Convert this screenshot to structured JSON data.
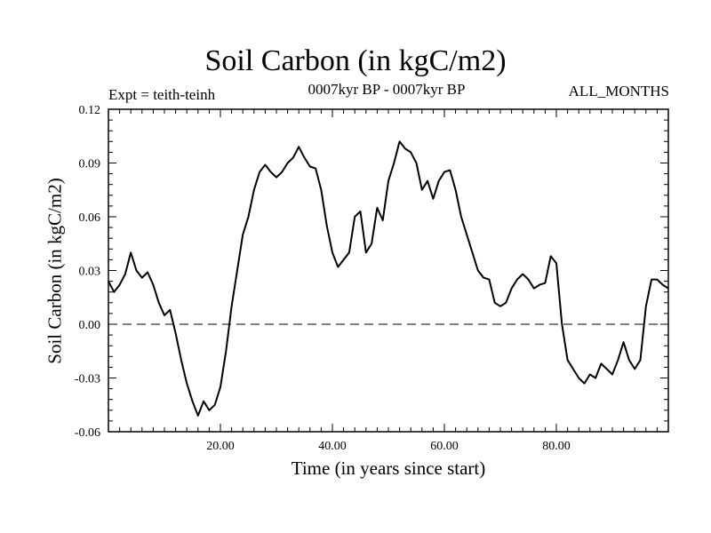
{
  "chart_data": {
    "type": "line",
    "title": "Soil Carbon (in kgC/m2)",
    "subtitle": "0007kyr BP - 0007kyr BP",
    "experiment": "Expt = teith-teinh",
    "period": "ALL_MONTHS",
    "xlabel": "Time (in years since start)",
    "ylabel": "Soil Carbon (in kgC/m2)",
    "xlim": [
      0,
      100
    ],
    "ylim": [
      -0.06,
      0.12
    ],
    "xticks": [
      20,
      40,
      60,
      80
    ],
    "xtick_labels": [
      "20.00",
      "40.00",
      "60.00",
      "80.00"
    ],
    "yticks": [
      -0.06,
      -0.03,
      0.0,
      0.03,
      0.06,
      0.09,
      0.12
    ],
    "ytick_labels": [
      "-0.06",
      "-0.03",
      "0.00",
      "0.03",
      "0.06",
      "0.09",
      "0.12"
    ],
    "zero_line": true,
    "series": [
      {
        "name": "Soil Carbon",
        "x": [
          0,
          1,
          2,
          3,
          4,
          5,
          6,
          7,
          8,
          9,
          10,
          11,
          12,
          13,
          14,
          15,
          16,
          17,
          18,
          19,
          20,
          21,
          22,
          23,
          24,
          25,
          26,
          27,
          28,
          29,
          30,
          31,
          32,
          33,
          34,
          35,
          36,
          37,
          38,
          39,
          40,
          41,
          42,
          43,
          44,
          45,
          46,
          47,
          48,
          49,
          50,
          51,
          52,
          53,
          54,
          55,
          56,
          57,
          58,
          59,
          60,
          61,
          62,
          63,
          64,
          65,
          66,
          67,
          68,
          69,
          70,
          71,
          72,
          73,
          74,
          75,
          76,
          77,
          78,
          79,
          80,
          81,
          82,
          83,
          84,
          85,
          86,
          87,
          88,
          89,
          90,
          91,
          92,
          93,
          94,
          95,
          96,
          97,
          98,
          99,
          100
        ],
        "y": [
          0.024,
          0.018,
          0.022,
          0.028,
          0.04,
          0.03,
          0.026,
          0.029,
          0.022,
          0.012,
          0.005,
          0.008,
          -0.005,
          -0.02,
          -0.033,
          -0.043,
          -0.051,
          -0.043,
          -0.048,
          -0.045,
          -0.035,
          -0.015,
          0.01,
          0.03,
          0.05,
          0.06,
          0.075,
          0.085,
          0.089,
          0.085,
          0.082,
          0.085,
          0.09,
          0.093,
          0.099,
          0.093,
          0.088,
          0.087,
          0.075,
          0.055,
          0.04,
          0.032,
          0.036,
          0.04,
          0.06,
          0.063,
          0.04,
          0.045,
          0.065,
          0.058,
          0.08,
          0.09,
          0.102,
          0.098,
          0.096,
          0.09,
          0.075,
          0.08,
          0.07,
          0.08,
          0.085,
          0.086,
          0.075,
          0.06,
          0.05,
          0.04,
          0.03,
          0.026,
          0.025,
          0.012,
          0.01,
          0.012,
          0.02,
          0.025,
          0.028,
          0.025,
          0.02,
          0.022,
          0.023,
          0.038,
          0.034,
          0.0,
          -0.02,
          -0.025,
          -0.03,
          -0.033,
          -0.028,
          -0.03,
          -0.022,
          -0.025,
          -0.028,
          -0.02,
          -0.01,
          -0.02,
          -0.025,
          -0.02,
          0.01,
          0.025,
          0.025,
          0.022,
          0.02
        ]
      }
    ]
  }
}
